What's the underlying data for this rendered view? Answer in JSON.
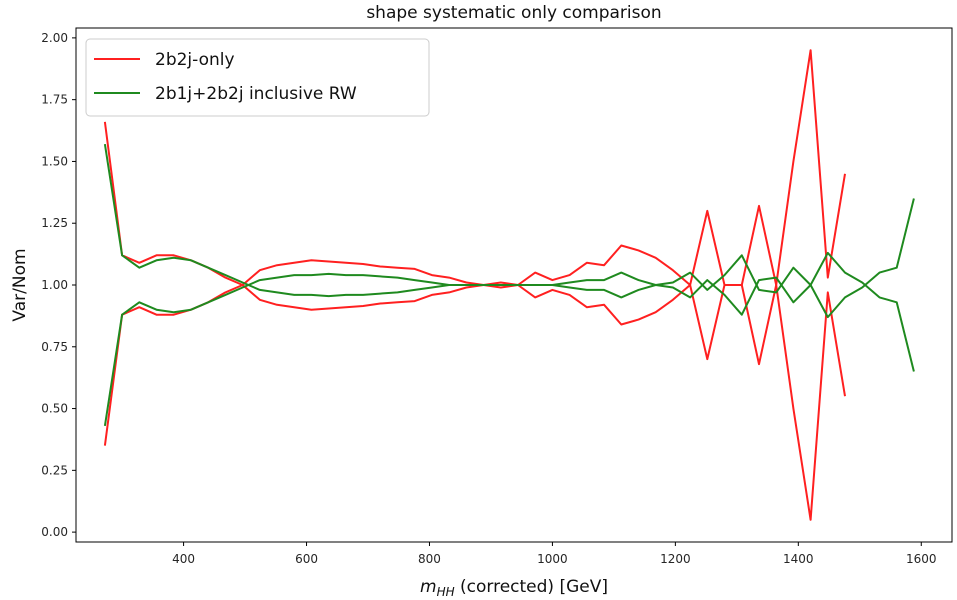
{
  "chart_data": {
    "type": "line",
    "title": "shape systematic only comparison",
    "xlabel_var": "m",
    "xlabel_sub": "HH",
    "xlabel_rest": " (corrected) [GeV]",
    "ylabel": "Var/Nom",
    "xlim": [
      225,
      1650
    ],
    "ylim": [
      -0.04,
      2.04
    ],
    "xticks": [
      400,
      600,
      800,
      1000,
      1200,
      1400,
      1600
    ],
    "yticks": [
      "0.00",
      "0.25",
      "0.50",
      "0.75",
      "1.00",
      "1.25",
      "1.50",
      "1.75",
      "2.00"
    ],
    "legend_position": "upper-left",
    "grid": false,
    "series": [
      {
        "name": "2b2j-only",
        "color": "#ff2020",
        "x": [
          272,
          300,
          328,
          356,
          384,
          412,
          440,
          468,
          496,
          524,
          552,
          580,
          608,
          636,
          664,
          692,
          720,
          748,
          776,
          804,
          832,
          860,
          888,
          916,
          944,
          972,
          1000,
          1028,
          1056,
          1084,
          1112,
          1140,
          1168,
          1196,
          1224,
          1252,
          1280,
          1308,
          1336,
          1364,
          1392,
          1420,
          1448,
          1476
        ],
        "values": [
          1.66,
          1.12,
          1.09,
          1.12,
          1.12,
          1.1,
          1.07,
          1.03,
          1.0,
          1.06,
          1.08,
          1.09,
          1.1,
          1.095,
          1.09,
          1.085,
          1.075,
          1.07,
          1.065,
          1.04,
          1.03,
          1.01,
          1.0,
          0.99,
          1.0,
          1.05,
          1.02,
          1.04,
          1.09,
          1.08,
          1.16,
          1.14,
          1.11,
          1.06,
          1.0,
          1.3,
          1.0,
          1.0,
          1.32,
          1.0,
          1.5,
          1.95,
          1.03,
          1.45
        ]
      },
      {
        "name": "2b2j-only",
        "color": "#ff2020",
        "x": [
          272,
          300,
          328,
          356,
          384,
          412,
          440,
          468,
          496,
          524,
          552,
          580,
          608,
          636,
          664,
          692,
          720,
          748,
          776,
          804,
          832,
          860,
          888,
          916,
          944,
          972,
          1000,
          1028,
          1056,
          1084,
          1112,
          1140,
          1168,
          1196,
          1224,
          1252,
          1280,
          1308,
          1336,
          1364,
          1392,
          1420,
          1448,
          1476
        ],
        "values": [
          0.35,
          0.88,
          0.91,
          0.88,
          0.88,
          0.9,
          0.93,
          0.97,
          1.0,
          0.94,
          0.92,
          0.91,
          0.9,
          0.905,
          0.91,
          0.915,
          0.925,
          0.93,
          0.935,
          0.96,
          0.97,
          0.99,
          1.0,
          1.01,
          1.0,
          0.95,
          0.98,
          0.96,
          0.91,
          0.92,
          0.84,
          0.86,
          0.89,
          0.94,
          1.0,
          0.7,
          1.0,
          1.0,
          0.68,
          1.0,
          0.5,
          0.05,
          0.97,
          0.55
        ]
      },
      {
        "name": "2b1j+2b2j inclusive RW",
        "color": "#1f8a1f",
        "x": [
          272,
          300,
          328,
          356,
          384,
          412,
          440,
          468,
          496,
          524,
          552,
          580,
          608,
          636,
          664,
          692,
          720,
          748,
          776,
          804,
          832,
          860,
          888,
          916,
          944,
          972,
          1000,
          1028,
          1056,
          1084,
          1112,
          1140,
          1168,
          1196,
          1224,
          1252,
          1280,
          1308,
          1336,
          1364,
          1392,
          1420,
          1448,
          1476,
          1504,
          1532,
          1560,
          1588
        ],
        "values": [
          1.57,
          1.12,
          1.07,
          1.1,
          1.11,
          1.1,
          1.07,
          1.04,
          1.01,
          0.98,
          0.97,
          0.96,
          0.96,
          0.955,
          0.96,
          0.96,
          0.965,
          0.97,
          0.98,
          0.99,
          1.0,
          1.0,
          1.0,
          1.0,
          1.0,
          1.0,
          1.0,
          1.01,
          1.02,
          1.02,
          1.05,
          1.02,
          1.0,
          1.01,
          1.05,
          0.98,
          1.04,
          1.12,
          0.98,
          0.97,
          1.07,
          1.0,
          0.87,
          0.95,
          0.99,
          1.05,
          1.07,
          1.35
        ]
      },
      {
        "name": "2b1j+2b2j inclusive RW",
        "color": "#1f8a1f",
        "x": [
          272,
          300,
          328,
          356,
          384,
          412,
          440,
          468,
          496,
          524,
          552,
          580,
          608,
          636,
          664,
          692,
          720,
          748,
          776,
          804,
          832,
          860,
          888,
          916,
          944,
          972,
          1000,
          1028,
          1056,
          1084,
          1112,
          1140,
          1168,
          1196,
          1224,
          1252,
          1280,
          1308,
          1336,
          1364,
          1392,
          1420,
          1448,
          1476,
          1504,
          1532,
          1560,
          1588
        ],
        "values": [
          0.43,
          0.88,
          0.93,
          0.9,
          0.89,
          0.9,
          0.93,
          0.96,
          0.99,
          1.02,
          1.03,
          1.04,
          1.04,
          1.045,
          1.04,
          1.04,
          1.035,
          1.03,
          1.02,
          1.01,
          1.0,
          1.0,
          1.0,
          1.0,
          1.0,
          1.0,
          1.0,
          0.99,
          0.98,
          0.98,
          0.95,
          0.98,
          1.0,
          0.99,
          0.95,
          1.02,
          0.96,
          0.88,
          1.02,
          1.03,
          0.93,
          1.0,
          1.13,
          1.05,
          1.01,
          0.95,
          0.93,
          0.65
        ]
      }
    ],
    "legend": [
      {
        "name": "2b2j-only",
        "color": "#ff2020"
      },
      {
        "name": "2b1j+2b2j inclusive RW",
        "color": "#1f8a1f"
      }
    ]
  }
}
